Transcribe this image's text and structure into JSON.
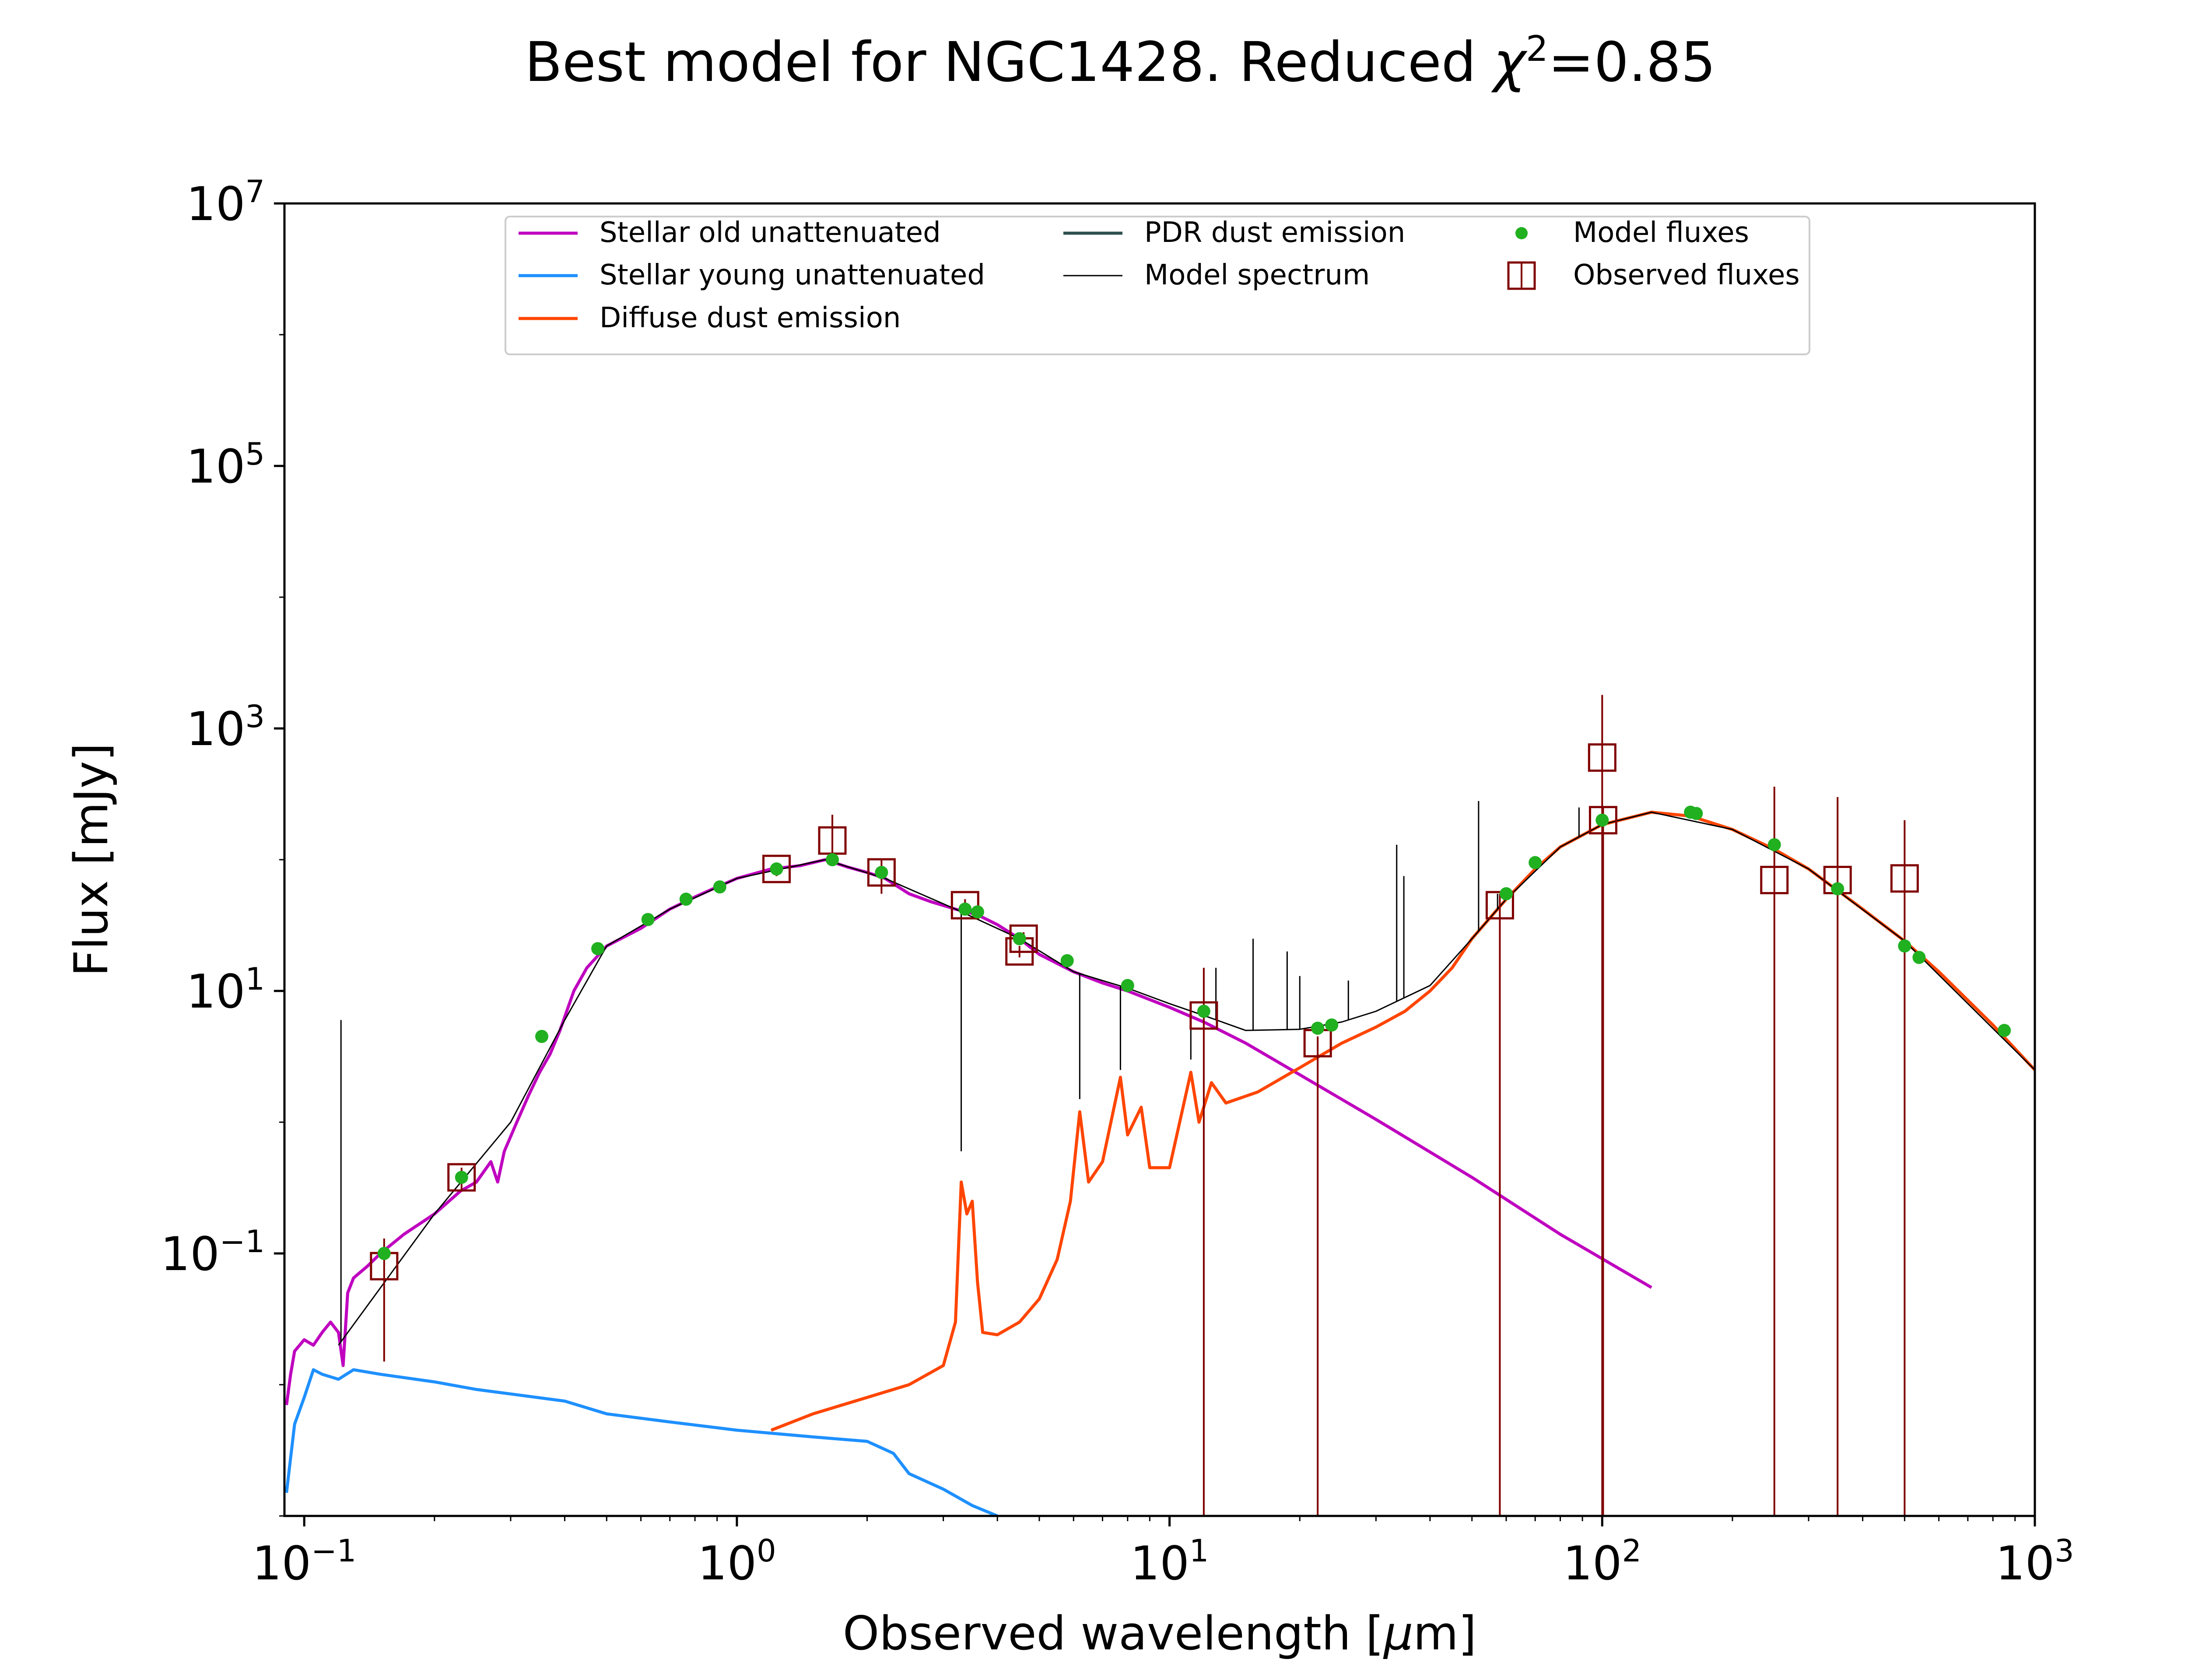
{
  "chart_data": {
    "type": "line",
    "title_main": "Best model for NGC1428. Reduced ",
    "title_symbol": "χ",
    "title_exp": "2",
    "title_value": "=0.85",
    "xlabel_main": "Observed wavelength [",
    "xlabel_symbol": "μ",
    "xlabel_unit": "m]",
    "ylabel": "Flux [mJy]",
    "xscale": "log",
    "yscale": "log",
    "xlim": [
      0.09,
      1000
    ],
    "ylim": [
      0.001,
      10000000
    ],
    "x_ticks": [
      {
        "base": "10",
        "exp": "−1",
        "value": 0.1
      },
      {
        "base": "10",
        "exp": "0",
        "value": 1
      },
      {
        "base": "10",
        "exp": "1",
        "value": 10
      },
      {
        "base": "10",
        "exp": "2",
        "value": 100
      },
      {
        "base": "10",
        "exp": "3",
        "value": 1000
      }
    ],
    "y_ticks": [
      {
        "base": "10",
        "exp": "−1",
        "value": 0.1
      },
      {
        "base": "10",
        "exp": "1",
        "value": 10
      },
      {
        "base": "10",
        "exp": "3",
        "value": 1000
      },
      {
        "base": "10",
        "exp": "5",
        "value": 100000
      },
      {
        "base": "10",
        "exp": "7",
        "value": 10000000
      }
    ],
    "grid": false,
    "legend_position": "top-center",
    "legend": [
      {
        "label": "Stellar old unattenuated",
        "color": "#bf00bf",
        "kind": "line"
      },
      {
        "label": "Stellar young unattenuated",
        "color": "#1e90ff",
        "kind": "line"
      },
      {
        "label": "Diffuse dust emission",
        "color": "#ff4500",
        "kind": "line"
      },
      {
        "label": "PDR dust emission",
        "color": "#2f4f4f",
        "kind": "line"
      },
      {
        "label": "Model spectrum",
        "color": "#000000",
        "kind": "thinline"
      },
      {
        "label": "Model fluxes",
        "color": "#20b020",
        "kind": "dot"
      },
      {
        "label": "Observed fluxes",
        "color": "#800000",
        "kind": "square"
      }
    ],
    "series": [
      {
        "name": "Stellar old unattenuated",
        "color": "#bf00bf",
        "points": [
          [
            0.091,
            0.007
          ],
          [
            0.093,
            0.012
          ],
          [
            0.095,
            0.018
          ],
          [
            0.1,
            0.022
          ],
          [
            0.105,
            0.02
          ],
          [
            0.11,
            0.025
          ],
          [
            0.115,
            0.03
          ],
          [
            0.12,
            0.025
          ],
          [
            0.123,
            0.014
          ],
          [
            0.126,
            0.05
          ],
          [
            0.13,
            0.065
          ],
          [
            0.14,
            0.08
          ],
          [
            0.15,
            0.1
          ],
          [
            0.17,
            0.14
          ],
          [
            0.2,
            0.2
          ],
          [
            0.23,
            0.3
          ],
          [
            0.25,
            0.35
          ],
          [
            0.27,
            0.5
          ],
          [
            0.28,
            0.35
          ],
          [
            0.29,
            0.6
          ],
          [
            0.31,
            1.0
          ],
          [
            0.33,
            1.6
          ],
          [
            0.35,
            2.4
          ],
          [
            0.37,
            3.3
          ],
          [
            0.39,
            5.0
          ],
          [
            0.42,
            10
          ],
          [
            0.45,
            15
          ],
          [
            0.5,
            22
          ],
          [
            0.6,
            30
          ],
          [
            0.7,
            42
          ],
          [
            0.8,
            52
          ],
          [
            0.9,
            62
          ],
          [
            1.0,
            72
          ],
          [
            1.2,
            85
          ],
          [
            1.4,
            90
          ],
          [
            1.6,
            100
          ],
          [
            1.8,
            88
          ],
          [
            2.0,
            80
          ],
          [
            2.2,
            72
          ],
          [
            2.5,
            55
          ],
          [
            2.8,
            48
          ],
          [
            3.2,
            42
          ],
          [
            3.6,
            38
          ],
          [
            4.0,
            32
          ],
          [
            4.5,
            25
          ],
          [
            5.0,
            19
          ],
          [
            6.0,
            14
          ],
          [
            7.0,
            11.5
          ],
          [
            8.0,
            10
          ],
          [
            10.0,
            7.5
          ],
          [
            12.0,
            5.8
          ],
          [
            15.0,
            4.0
          ],
          [
            20.0,
            2.3
          ],
          [
            30.0,
            1.05
          ],
          [
            50.0,
            0.38
          ],
          [
            80.0,
            0.14
          ],
          [
            130.0,
            0.055
          ]
        ]
      },
      {
        "name": "Stellar young unattenuated",
        "color": "#1e90ff",
        "points": [
          [
            0.091,
            0.0015
          ],
          [
            0.095,
            0.005
          ],
          [
            0.1,
            0.008
          ],
          [
            0.105,
            0.013
          ],
          [
            0.11,
            0.012
          ],
          [
            0.12,
            0.011
          ],
          [
            0.13,
            0.013
          ],
          [
            0.15,
            0.012
          ],
          [
            0.2,
            0.0105
          ],
          [
            0.25,
            0.0092
          ],
          [
            0.3,
            0.0085
          ],
          [
            0.4,
            0.0075
          ],
          [
            0.5,
            0.006
          ],
          [
            0.7,
            0.0052
          ],
          [
            1.0,
            0.0045
          ],
          [
            1.5,
            0.004
          ],
          [
            2.0,
            0.0037
          ],
          [
            2.3,
            0.003
          ],
          [
            2.5,
            0.0021
          ],
          [
            3.0,
            0.0016
          ],
          [
            3.5,
            0.0012
          ],
          [
            4.0,
            0.001
          ]
        ]
      },
      {
        "name": "Diffuse dust emission",
        "color": "#ff4500",
        "points": [
          [
            1.2,
            0.0045
          ],
          [
            1.5,
            0.006
          ],
          [
            2.0,
            0.008
          ],
          [
            2.5,
            0.01
          ],
          [
            3.0,
            0.014
          ],
          [
            3.2,
            0.03
          ],
          [
            3.3,
            0.35
          ],
          [
            3.4,
            0.2
          ],
          [
            3.5,
            0.25
          ],
          [
            3.6,
            0.06
          ],
          [
            3.7,
            0.025
          ],
          [
            4.0,
            0.024
          ],
          [
            4.5,
            0.03
          ],
          [
            5.0,
            0.045
          ],
          [
            5.5,
            0.09
          ],
          [
            5.9,
            0.25
          ],
          [
            6.2,
            1.2
          ],
          [
            6.5,
            0.35
          ],
          [
            7.0,
            0.5
          ],
          [
            7.7,
            2.2
          ],
          [
            8.0,
            0.8
          ],
          [
            8.6,
            1.3
          ],
          [
            9.0,
            0.45
          ],
          [
            10.0,
            0.45
          ],
          [
            11.2,
            2.4
          ],
          [
            11.7,
            1.0
          ],
          [
            12.5,
            2.0
          ],
          [
            13.5,
            1.4
          ],
          [
            16.0,
            1.7
          ],
          [
            20.0,
            2.6
          ],
          [
            25.0,
            4.0
          ],
          [
            30.0,
            5.3
          ],
          [
            35.0,
            7.0
          ],
          [
            40.0,
            10
          ],
          [
            45.0,
            15
          ],
          [
            50.0,
            25
          ],
          [
            60.0,
            50
          ],
          [
            70.0,
            85
          ],
          [
            80.0,
            125
          ],
          [
            100.0,
            185
          ],
          [
            130.0,
            230
          ],
          [
            160.0,
            215
          ],
          [
            200.0,
            170
          ],
          [
            250.0,
            120
          ],
          [
            300.0,
            85
          ],
          [
            400.0,
            42
          ],
          [
            500.0,
            24
          ],
          [
            600.0,
            14
          ],
          [
            800.0,
            5.5
          ],
          [
            1000.0,
            2.5
          ]
        ]
      },
      {
        "name": "Model spectrum",
        "color": "#000000",
        "points": [
          [
            0.12,
            0.02
          ],
          [
            0.2,
            0.2
          ],
          [
            0.3,
            1.0
          ],
          [
            0.4,
            6.0
          ],
          [
            0.5,
            22
          ],
          [
            0.7,
            42
          ],
          [
            1.0,
            72
          ],
          [
            1.6,
            100
          ],
          [
            2.2,
            72
          ],
          [
            3.2,
            42
          ],
          [
            4.5,
            25
          ],
          [
            6.0,
            14
          ],
          [
            8.0,
            10.5
          ],
          [
            10.0,
            8.0
          ],
          [
            12.0,
            6.5
          ],
          [
            15.0,
            5.0
          ],
          [
            20.0,
            5.1
          ],
          [
            25.0,
            5.8
          ],
          [
            30.0,
            7.0
          ],
          [
            40.0,
            11
          ],
          [
            50.0,
            25
          ],
          [
            60.0,
            50
          ],
          [
            80.0,
            125
          ],
          [
            100.0,
            185
          ],
          [
            130.0,
            230
          ],
          [
            200.0,
            170
          ],
          [
            300.0,
            85
          ],
          [
            500.0,
            24
          ],
          [
            1000.0,
            2.5
          ]
        ]
      }
    ],
    "emission_spikes": [
      [
        0.1216,
        6.0
      ],
      [
        3.3,
        0.6
      ],
      [
        6.2,
        1.5
      ],
      [
        7.7,
        2.5
      ],
      [
        11.2,
        3.0
      ],
      [
        12.8,
        15
      ],
      [
        15.6,
        25
      ],
      [
        18.7,
        20
      ],
      [
        20.0,
        13
      ],
      [
        25.9,
        12
      ],
      [
        33.5,
        130
      ],
      [
        34.8,
        75
      ],
      [
        51.8,
        280
      ],
      [
        57.3,
        55
      ],
      [
        88.4,
        250
      ],
      [
        100.0,
        1300
      ]
    ],
    "model_fluxes": [
      [
        0.153,
        0.1
      ],
      [
        0.231,
        0.38
      ],
      [
        0.354,
        4.5
      ],
      [
        0.477,
        21
      ],
      [
        0.623,
        35
      ],
      [
        0.763,
        50
      ],
      [
        0.913,
        62
      ],
      [
        1.235,
        85
      ],
      [
        1.662,
        100
      ],
      [
        2.159,
        80
      ],
      [
        3.368,
        42
      ],
      [
        3.6,
        40
      ],
      [
        4.5,
        25
      ],
      [
        5.8,
        17
      ],
      [
        8.0,
        11
      ],
      [
        12.0,
        7.0
      ],
      [
        22.0,
        5.2
      ],
      [
        23.7,
        5.5
      ],
      [
        60.0,
        55
      ],
      [
        70.0,
        95
      ],
      [
        100.0,
        200
      ],
      [
        160.0,
        230
      ],
      [
        165.0,
        225
      ],
      [
        250.0,
        130
      ],
      [
        350.0,
        60
      ],
      [
        500.0,
        22
      ],
      [
        540.0,
        18
      ],
      [
        850.0,
        5.0
      ]
    ],
    "observed_fluxes": [
      {
        "x": 0.153,
        "y": 0.08,
        "lo": 0.015,
        "hi": 0.13
      },
      {
        "x": 0.231,
        "y": 0.38,
        "lo": 0.3,
        "hi": 0.45
      },
      {
        "x": 1.235,
        "y": 85,
        "lo": 75,
        "hi": 95
      },
      {
        "x": 1.662,
        "y": 140,
        "lo": 90,
        "hi": 220
      },
      {
        "x": 2.159,
        "y": 80,
        "lo": 55,
        "hi": 100
      },
      {
        "x": 3.368,
        "y": 45,
        "lo": 40,
        "hi": 50
      },
      {
        "x": 4.5,
        "y": 20,
        "lo": 18,
        "hi": 22
      },
      {
        "x": 4.6,
        "y": 25,
        "lo": 23,
        "hi": 28
      },
      {
        "x": 12.0,
        "y": 6.5,
        "lo": 0.001,
        "hi": 15
      },
      {
        "x": 22.0,
        "y": 4.0,
        "lo": 0.001,
        "hi": 4.5
      },
      {
        "x": 58.0,
        "y": 45,
        "lo": 0.001,
        "hi": 55
      },
      {
        "x": 100.0,
        "y": 600,
        "lo": 0.001,
        "hi": 1800
      },
      {
        "x": 100.5,
        "y": 200,
        "lo": 0.001,
        "hi": 250
      },
      {
        "x": 250.0,
        "y": 70,
        "lo": 0.001,
        "hi": 360
      },
      {
        "x": 350.0,
        "y": 70,
        "lo": 0.001,
        "hi": 300
      },
      {
        "x": 500.0,
        "y": 72,
        "lo": 0.001,
        "hi": 200
      }
    ]
  }
}
